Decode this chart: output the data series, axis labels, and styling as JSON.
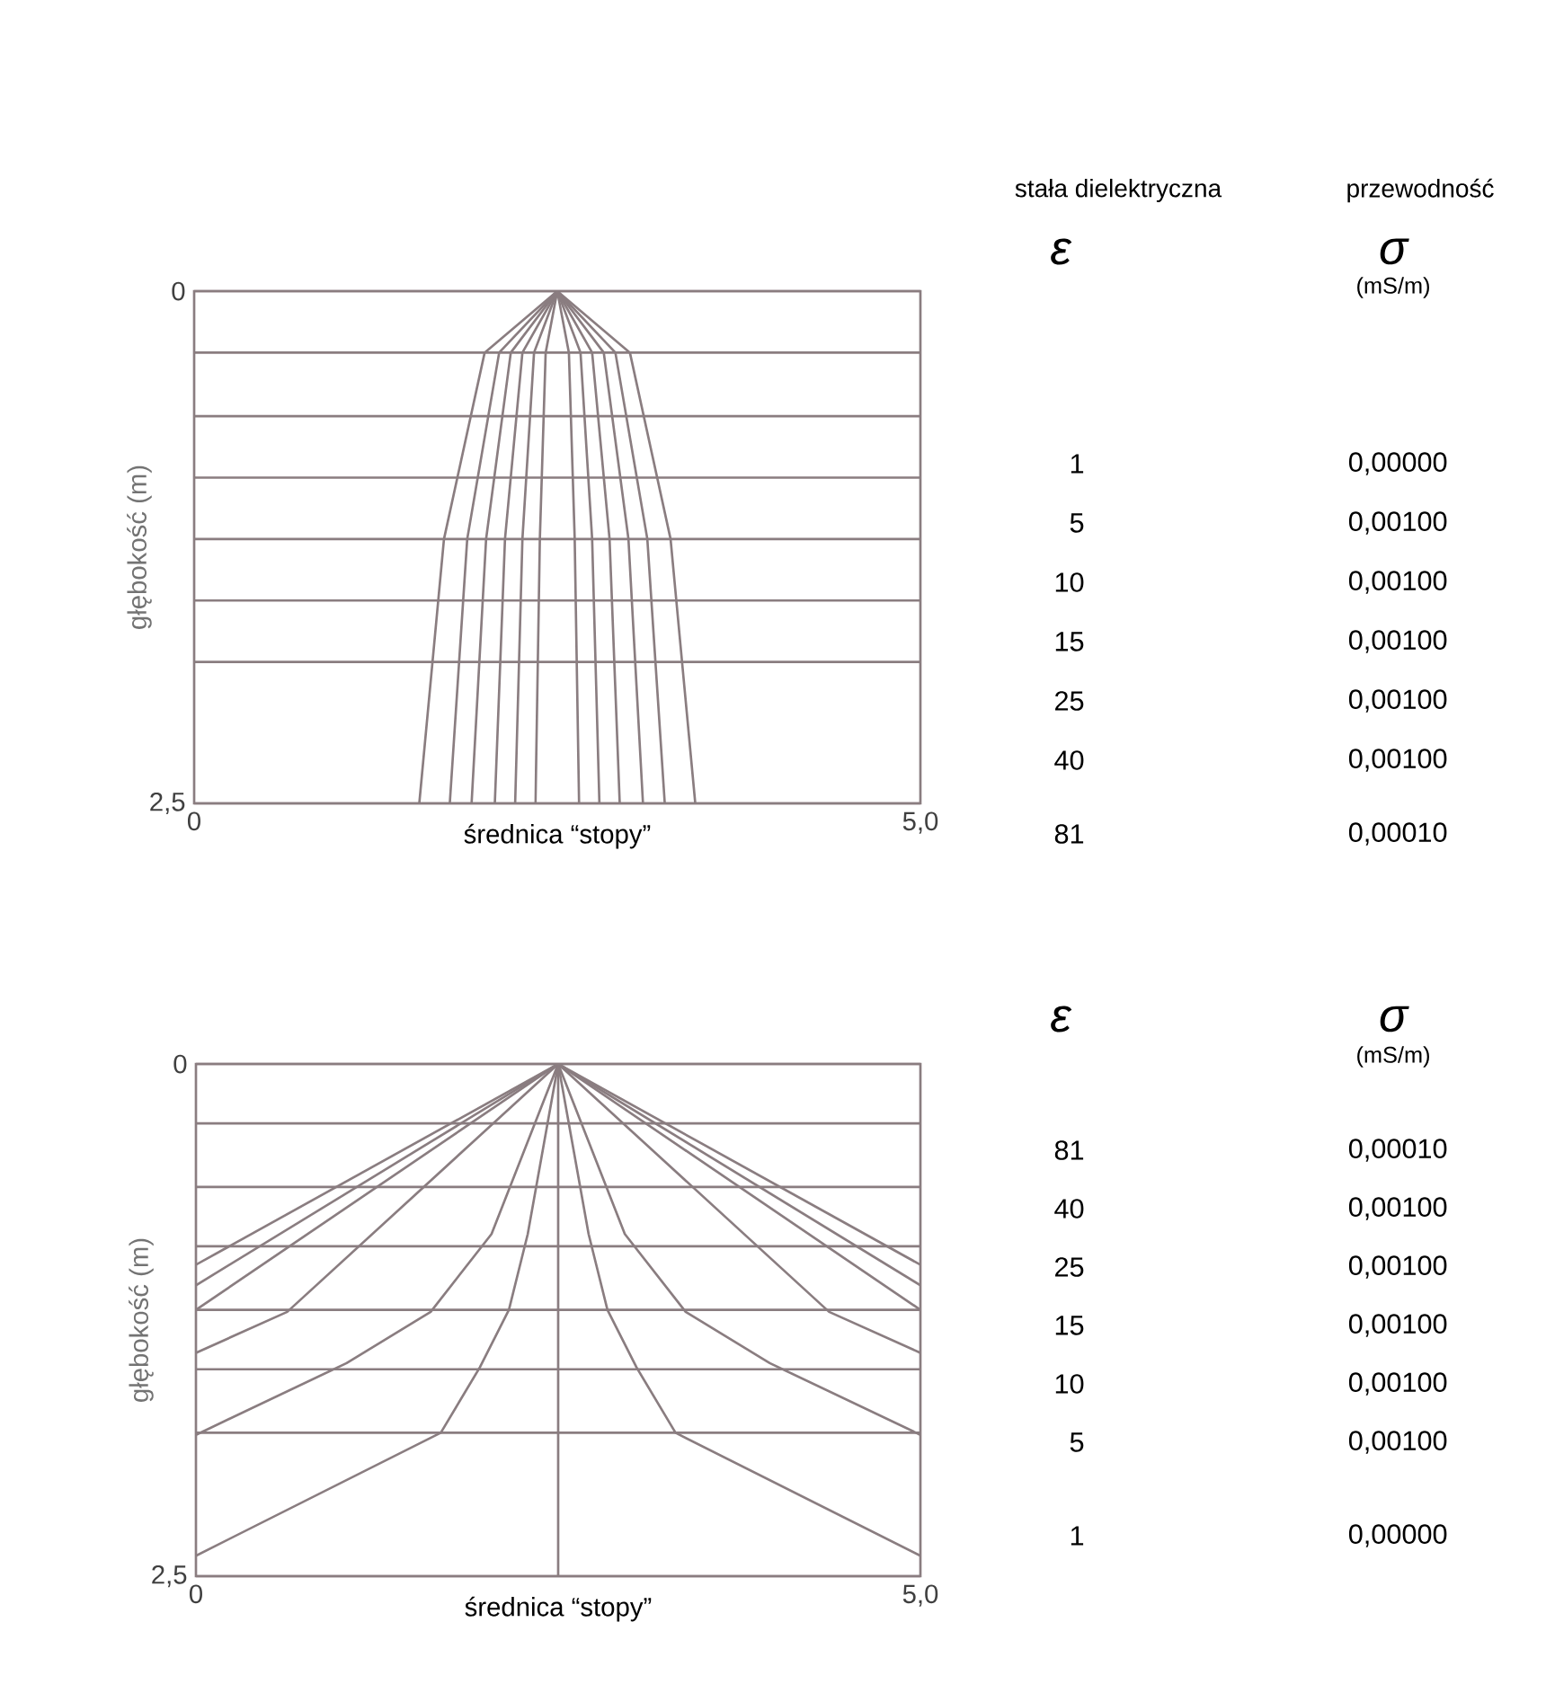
{
  "chart_data": [
    {
      "type": "line",
      "xlabel": "średnica “stopy”",
      "ylabel": "głębokość (m)",
      "xlim": [
        0,
        5
      ],
      "xticks": [
        0,
        {
          "value": 5,
          "label": "5,0"
        }
      ],
      "ylim": [
        2.5,
        0
      ],
      "yticks": [
        0,
        {
          "value": 0.3,
          "label": null
        },
        {
          "value": 0.61,
          "label": null
        },
        {
          "value": 0.91,
          "label": null
        },
        {
          "value": 1.21,
          "label": null
        },
        {
          "value": 1.51,
          "label": null
        },
        {
          "value": 1.81,
          "label": null
        },
        {
          "value": 2.5,
          "label": "2,5"
        }
      ],
      "grid": "y",
      "series": [
        {
          "color": "#8a7d80",
          "x": [
            2.5,
            2.0,
            1.72,
            1.55
          ],
          "values": [
            0,
            0.3,
            1.21,
            2.5
          ]
        },
        {
          "color": "#8a7d80",
          "x": [
            2.5,
            3.0,
            3.28,
            3.45
          ],
          "values": [
            0,
            0.3,
            1.21,
            2.5
          ]
        },
        {
          "color": "#8a7d80",
          "x": [
            2.5,
            2.1,
            1.88,
            1.76
          ],
          "values": [
            0,
            0.3,
            1.21,
            2.5
          ]
        },
        {
          "color": "#8a7d80",
          "x": [
            2.5,
            2.9,
            3.12,
            3.24
          ],
          "values": [
            0,
            0.3,
            1.21,
            2.5
          ]
        },
        {
          "color": "#8a7d80",
          "x": [
            2.5,
            2.18,
            2.01,
            1.91
          ],
          "values": [
            0,
            0.3,
            1.21,
            2.5
          ]
        },
        {
          "color": "#8a7d80",
          "x": [
            2.5,
            2.82,
            2.99,
            3.09
          ],
          "values": [
            0,
            0.3,
            1.21,
            2.5
          ]
        },
        {
          "color": "#8a7d80",
          "x": [
            2.5,
            2.26,
            2.14,
            2.07
          ],
          "values": [
            0,
            0.3,
            1.21,
            2.5
          ]
        },
        {
          "color": "#8a7d80",
          "x": [
            2.5,
            2.74,
            2.86,
            2.93
          ],
          "values": [
            0,
            0.3,
            1.21,
            2.5
          ]
        },
        {
          "color": "#8a7d80",
          "x": [
            2.5,
            2.34,
            2.26,
            2.21
          ],
          "values": [
            0,
            0.3,
            1.21,
            2.5
          ]
        },
        {
          "color": "#8a7d80",
          "x": [
            2.5,
            2.66,
            2.74,
            2.79
          ],
          "values": [
            0,
            0.3,
            1.21,
            2.5
          ]
        },
        {
          "color": "#8a7d80",
          "x": [
            2.5,
            2.42,
            2.38,
            2.35
          ],
          "values": [
            0,
            0.3,
            1.21,
            2.5
          ]
        },
        {
          "color": "#8a7d80",
          "x": [
            2.5,
            2.58,
            2.62,
            2.65
          ],
          "values": [
            0,
            0.3,
            1.21,
            2.5
          ]
        }
      ],
      "annotations": [
        "stała dielektryczna",
        "przewodność",
        "ε",
        "σ",
        "(mS/m)",
        "1",
        "0,00000",
        "5",
        "0,00100",
        "10",
        "0,00100",
        "15",
        "0,00100",
        "25",
        "0,00100",
        "40",
        "0,00100",
        "81",
        "0,00010"
      ]
    },
    {
      "type": "line",
      "xlabel": "średnica “stopy”",
      "ylabel": "głębokość (m)",
      "xlim": [
        0,
        5
      ],
      "xticks": [
        0,
        {
          "value": 5,
          "label": "5,0"
        }
      ],
      "ylim": [
        2.5,
        0
      ],
      "yticks": [
        0,
        {
          "value": 0.29,
          "label": null
        },
        {
          "value": 0.6,
          "label": null
        },
        {
          "value": 0.89,
          "label": null
        },
        {
          "value": 1.2,
          "label": null
        },
        {
          "value": 1.49,
          "label": null
        },
        {
          "value": 1.8,
          "label": null
        },
        {
          "value": 2.5,
          "label": "2,5"
        }
      ],
      "grid": "y",
      "ref_lines": [
        {
          "axis": "x",
          "value": 2.5,
          "color": "#8a7d80"
        }
      ],
      "series": [
        {
          "color": "#8a7d80",
          "x": [
            2.5,
            2.29,
            2.16,
            1.96,
            1.69,
            0
          ],
          "values": [
            0,
            0.83,
            1.2,
            1.48,
            1.8,
            2.4
          ]
        },
        {
          "color": "#8a7d80",
          "x": [
            2.5,
            2.71,
            2.84,
            3.04,
            3.31,
            5
          ],
          "values": [
            0,
            0.83,
            1.2,
            1.48,
            1.8,
            2.4
          ]
        },
        {
          "color": "#8a7d80",
          "x": [
            2.5,
            2.04,
            1.62,
            1.04,
            0
          ],
          "values": [
            0,
            0.83,
            1.21,
            1.46,
            1.81
          ]
        },
        {
          "color": "#8a7d80",
          "x": [
            2.5,
            2.96,
            3.38,
            3.96,
            5
          ],
          "values": [
            0,
            0.83,
            1.21,
            1.46,
            1.81
          ]
        },
        {
          "color": "#8a7d80",
          "x": [
            2.5,
            0.63,
            0
          ],
          "values": [
            0,
            1.21,
            1.41
          ]
        },
        {
          "color": "#8a7d80",
          "x": [
            2.5,
            4.37,
            5
          ],
          "values": [
            0,
            1.21,
            1.41
          ]
        },
        {
          "color": "#8a7d80",
          "x": [
            2.5,
            0
          ],
          "values": [
            0,
            1.2
          ]
        },
        {
          "color": "#8a7d80",
          "x": [
            2.5,
            5
          ],
          "values": [
            0,
            1.2
          ]
        },
        {
          "color": "#8a7d80",
          "x": [
            2.5,
            0
          ],
          "values": [
            0,
            1.08
          ]
        },
        {
          "color": "#8a7d80",
          "x": [
            2.5,
            5
          ],
          "values": [
            0,
            1.08
          ]
        },
        {
          "color": "#8a7d80",
          "x": [
            2.5,
            0
          ],
          "values": [
            0,
            0.98
          ]
        },
        {
          "color": "#8a7d80",
          "x": [
            2.5,
            5
          ],
          "values": [
            0,
            0.98
          ]
        }
      ],
      "annotations": [
        "ε",
        "σ",
        "(mS/m)",
        "81",
        "0,00010",
        "40",
        "0,00100",
        "25",
        "0,00100",
        "15",
        "0,00100",
        "10",
        "0,00100",
        "5",
        "0,00100",
        "1",
        "0,00000"
      ]
    }
  ]
}
